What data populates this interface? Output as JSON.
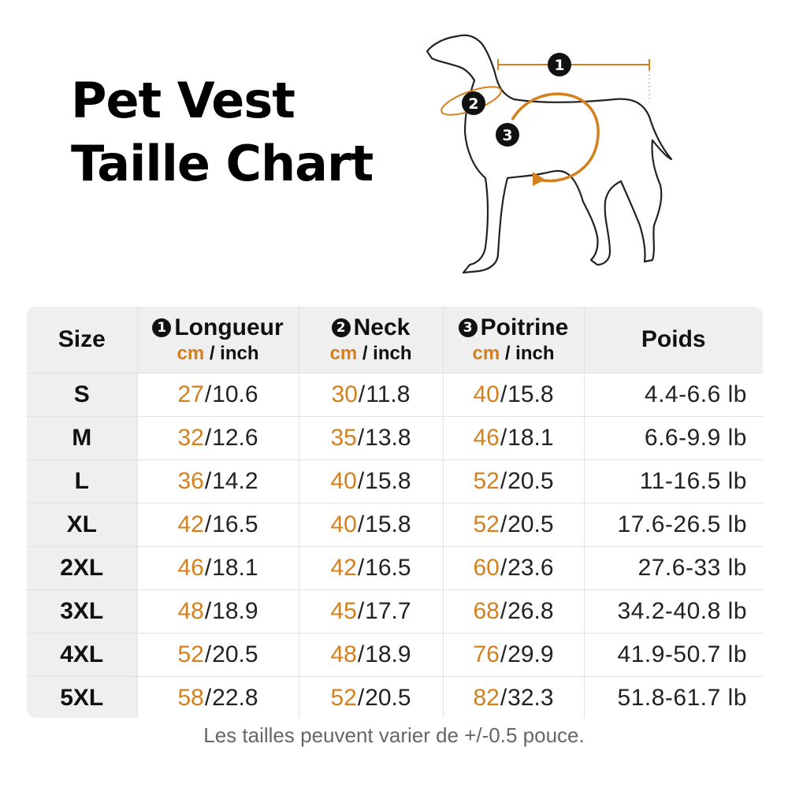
{
  "title": {
    "line1": "Pet Vest",
    "line2": "Taille Chart"
  },
  "diagram": {
    "markers": [
      "1",
      "2",
      "3"
    ],
    "accent_color": "#d4801e"
  },
  "table": {
    "headers": {
      "size": "Size",
      "length": {
        "num": "1",
        "label": "Longueur"
      },
      "neck": {
        "num": "2",
        "label": "Neck"
      },
      "chest": {
        "num": "3",
        "label": "Poitrine"
      },
      "weight": "Poids",
      "unit_cm": "cm",
      "unit_inch": " / inch"
    },
    "rows": [
      {
        "size": "S",
        "length_cm": "27",
        "length_in": "10.6",
        "neck_cm": "30",
        "neck_in": "11.8",
        "chest_cm": "40",
        "chest_in": "15.8",
        "weight": "4.4-6.6 lb"
      },
      {
        "size": "M",
        "length_cm": "32",
        "length_in": "12.6",
        "neck_cm": "35",
        "neck_in": "13.8",
        "chest_cm": "46",
        "chest_in": "18.1",
        "weight": "6.6-9.9 lb"
      },
      {
        "size": "L",
        "length_cm": "36",
        "length_in": "14.2",
        "neck_cm": "40",
        "neck_in": "15.8",
        "chest_cm": "52",
        "chest_in": "20.5",
        "weight": "11-16.5 lb"
      },
      {
        "size": "XL",
        "length_cm": "42",
        "length_in": "16.5",
        "neck_cm": "40",
        "neck_in": "15.8",
        "chest_cm": "52",
        "chest_in": "20.5",
        "weight": "17.6-26.5 lb"
      },
      {
        "size": "2XL",
        "length_cm": "46",
        "length_in": "18.1",
        "neck_cm": "42",
        "neck_in": "16.5",
        "chest_cm": "60",
        "chest_in": "23.6",
        "weight": "27.6-33 lb"
      },
      {
        "size": "3XL",
        "length_cm": "48",
        "length_in": "18.9",
        "neck_cm": "45",
        "neck_in": "17.7",
        "chest_cm": "68",
        "chest_in": "26.8",
        "weight": "34.2-40.8 lb"
      },
      {
        "size": "4XL",
        "length_cm": "52",
        "length_in": "20.5",
        "neck_cm": "48",
        "neck_in": "18.9",
        "chest_cm": "76",
        "chest_in": "29.9",
        "weight": "41.9-50.7 lb"
      },
      {
        "size": "5XL",
        "length_cm": "58",
        "length_in": "22.8",
        "neck_cm": "52",
        "neck_in": "20.5",
        "chest_cm": "82",
        "chest_in": "32.3",
        "weight": "51.8-61.7 lb"
      }
    ]
  },
  "footnote": "Les tailles peuvent varier de +/-0.5 pouce.",
  "colors": {
    "accent": "#d4801e",
    "header_bg": "#efefef",
    "text": "#111111"
  }
}
